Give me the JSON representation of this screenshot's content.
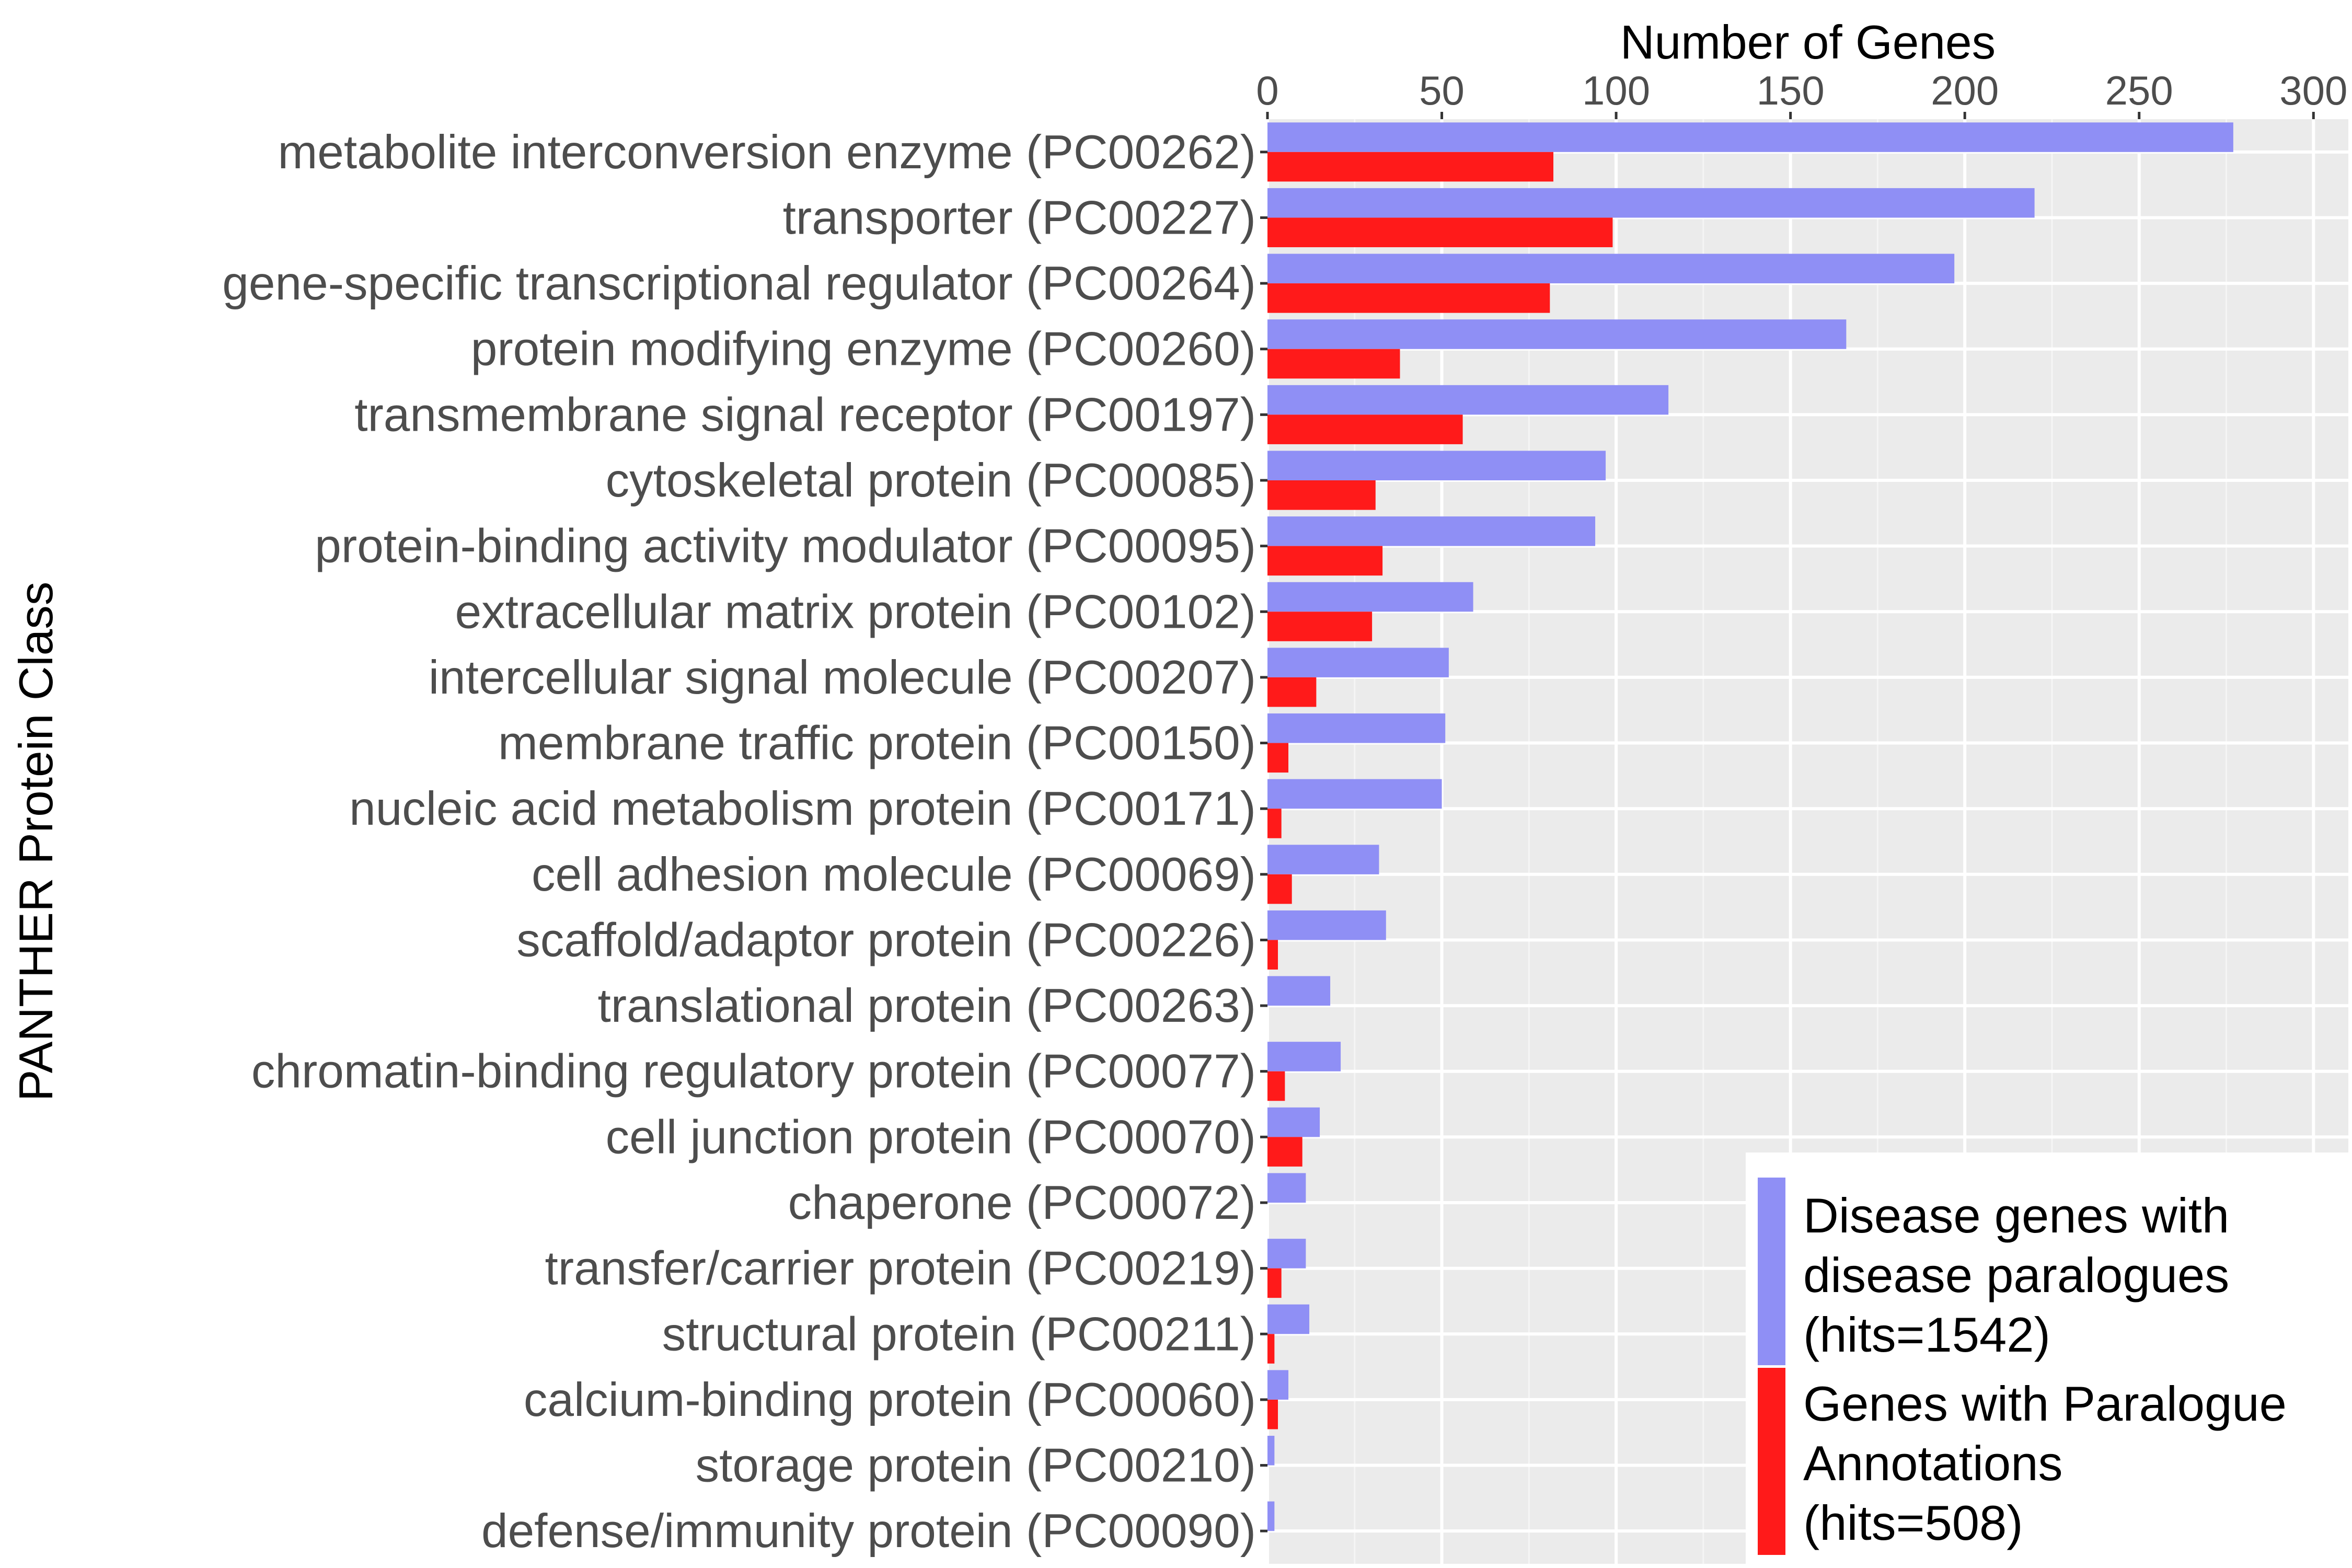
{
  "chart_data": {
    "type": "bar",
    "orientation": "horizontal",
    "xlabel": "Number of Genes",
    "ylabel": "PANTHER Protein Class",
    "xlim": [
      0,
      310
    ],
    "xticks": [
      "0",
      "50",
      "100",
      "150",
      "200",
      "250",
      "300"
    ],
    "grid": true,
    "legend_position": "bottom-right",
    "categories": [
      "metabolite interconversion enzyme (PC00262)",
      "transporter (PC00227)",
      "gene-specific transcriptional regulator (PC00264)",
      "protein modifying enzyme (PC00260)",
      "transmembrane signal receptor (PC00197)",
      "cytoskeletal protein (PC00085)",
      "protein-binding activity modulator (PC00095)",
      "extracellular matrix protein (PC00102)",
      "intercellular signal molecule (PC00207)",
      "membrane traffic protein (PC00150)",
      "nucleic acid metabolism protein (PC00171)",
      "cell adhesion molecule (PC00069)",
      "scaffold/adaptor protein (PC00226)",
      "translational protein (PC00263)",
      "chromatin-binding regulatory protein (PC00077)",
      "cell junction protein (PC00070)",
      "chaperone (PC00072)",
      "transfer/carrier protein (PC00219)",
      "structural protein (PC00211)",
      "calcium-binding protein (PC00060)",
      "storage protein (PC00210)",
      "defense/immunity protein (PC00090)"
    ],
    "series": [
      {
        "name": "Disease genes with disease paralogues (hits=1542)",
        "color": "#8f8ff5",
        "values": [
          277,
          220,
          197,
          166,
          115,
          97,
          94,
          59,
          52,
          51,
          50,
          32,
          34,
          18,
          21,
          15,
          11,
          11,
          12,
          6,
          2,
          2
        ]
      },
      {
        "name": "Genes with Paralogue Annotations (hits=508)",
        "color": "#ff1a1a",
        "values": [
          82,
          99,
          81,
          38,
          56,
          31,
          33,
          30,
          14,
          6,
          4,
          7,
          3,
          0,
          5,
          10,
          0,
          4,
          2,
          3,
          0,
          0
        ]
      }
    ]
  },
  "legend": {
    "items": [
      {
        "lines": [
          "Disease genes with",
          "disease paralogues",
          "(hits=1542)"
        ],
        "color": "#8f8ff5"
      },
      {
        "lines": [
          "Genes with Paralogue",
          "Annotations",
          "(hits=508)"
        ],
        "color": "#ff1a1a"
      }
    ]
  }
}
